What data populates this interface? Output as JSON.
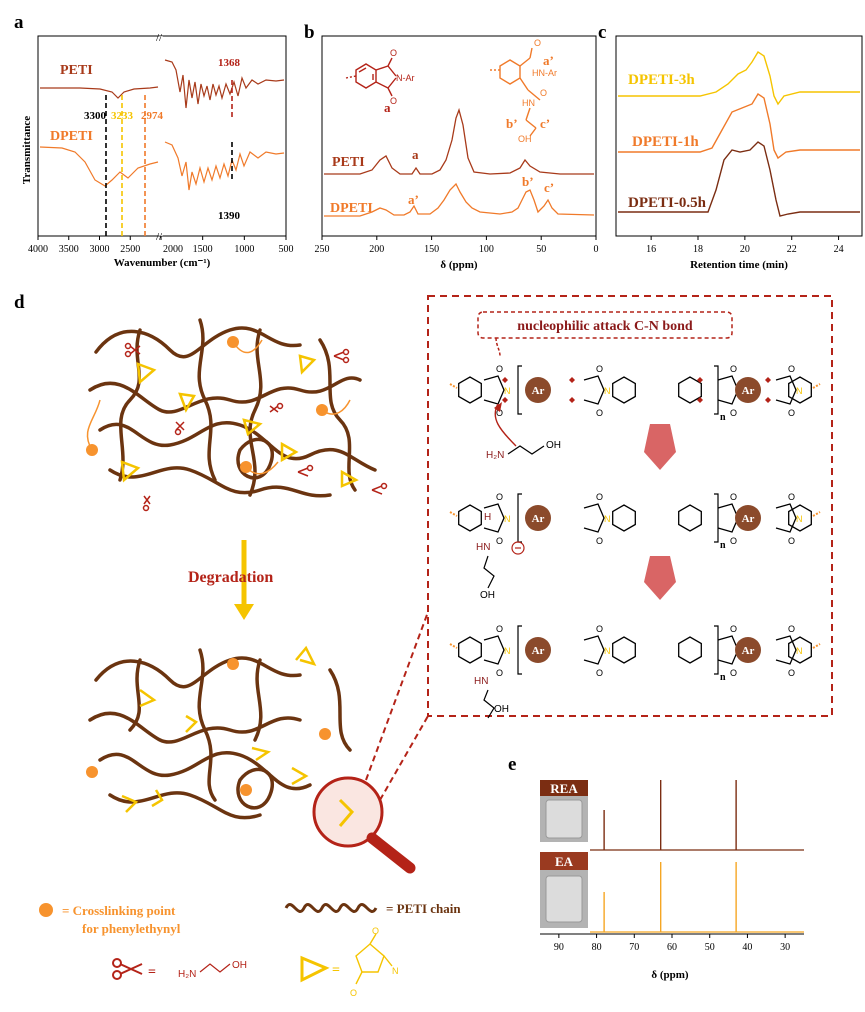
{
  "panel_labels": [
    "a",
    "b",
    "c",
    "d",
    "e"
  ],
  "colors": {
    "dark": "#7b2d12",
    "orange": "#f07a2a",
    "yellow": "#f5c400",
    "brown": "#6b3410",
    "red": "#b42318",
    "light_orange": "#f7932e",
    "deep": "#8b1a1a"
  },
  "chart_data": [
    {
      "panel": "a",
      "type": "line",
      "ylabel": "Transmittance",
      "xlabel": "Wavenumber (cm⁻¹)",
      "xlim": [
        4000,
        500
      ],
      "x_break": [
        2000,
        2000
      ],
      "x_ticks": [
        4000,
        3500,
        3000,
        2500,
        2000,
        1500,
        1000,
        500
      ],
      "series": [
        {
          "name": "PETI",
          "color": "#a83a1a"
        },
        {
          "name": "DPETI",
          "color": "#f07a2a"
        }
      ],
      "annotations": [
        "3300",
        "3233",
        "2974",
        "1368",
        "1390"
      ],
      "annotation_x": [
        3300,
        3233,
        2974,
        1368,
        1390
      ]
    },
    {
      "panel": "b",
      "type": "line",
      "xlabel": "δ (ppm)",
      "xlim": [
        250,
        0
      ],
      "x_ticks": [
        250,
        200,
        150,
        100,
        50,
        0
      ],
      "series": [
        {
          "name": "PETI",
          "color": "#a83a1a",
          "peaks_ppm": [
            193,
            166,
            128,
            62
          ]
        },
        {
          "name": "DPETI",
          "color": "#f07a2a",
          "peaks_ppm": [
            193,
            168,
            128,
            60,
            42
          ]
        }
      ],
      "annotations": [
        "a",
        "a’",
        "b’",
        "c’"
      ],
      "structure_labels": [
        "N-Ar",
        "a",
        "a’",
        "HN-Ar",
        "HN",
        "b’",
        "c’",
        "OH"
      ]
    },
    {
      "panel": "c",
      "type": "line",
      "xlabel": "Retention time (min)",
      "xlim": [
        14.5,
        25
      ],
      "x_ticks": [
        16,
        18,
        20,
        22,
        24
      ],
      "series": [
        {
          "name": "DPETI-3h",
          "color": "#f5c400"
        },
        {
          "name": "DPETI-1h",
          "color": "#f07a2a"
        },
        {
          "name": "DPETI-0.5h",
          "color": "#7b2d12"
        }
      ]
    },
    {
      "panel": "e",
      "type": "line",
      "xlabel": "δ (ppm)",
      "xlim": [
        95,
        25
      ],
      "x_ticks": [
        90,
        80,
        70,
        60,
        50,
        40,
        30
      ],
      "series": [
        {
          "name": "REA",
          "color": "#7b2d12",
          "peaks_ppm": [
            78,
            63,
            43
          ]
        },
        {
          "name": "EA",
          "color": "#f5a623",
          "peaks_ppm": [
            78,
            63,
            43
          ]
        }
      ]
    }
  ],
  "diagram": {
    "degradation_label": "Degradation",
    "mechanism_title": "nucleophilic attack C-N bond",
    "ar_label": "Ar",
    "n_label": "n",
    "amine_h2n": "H₂N",
    "amine_oh": "OH",
    "hn": "HN",
    "oh": "OH",
    "h": "H",
    "o": "O",
    "n": "N",
    "legend": {
      "crosslink": "= Crosslinking point",
      "crosslink2": "for phenylethynyl",
      "chain": "= PETI chain",
      "scissor_eq": "=",
      "scissor_h2n": "H₂N",
      "scissor_oh": "OH",
      "triangle_eq": "=",
      "imide_o": "O",
      "imide_n": "N"
    }
  }
}
